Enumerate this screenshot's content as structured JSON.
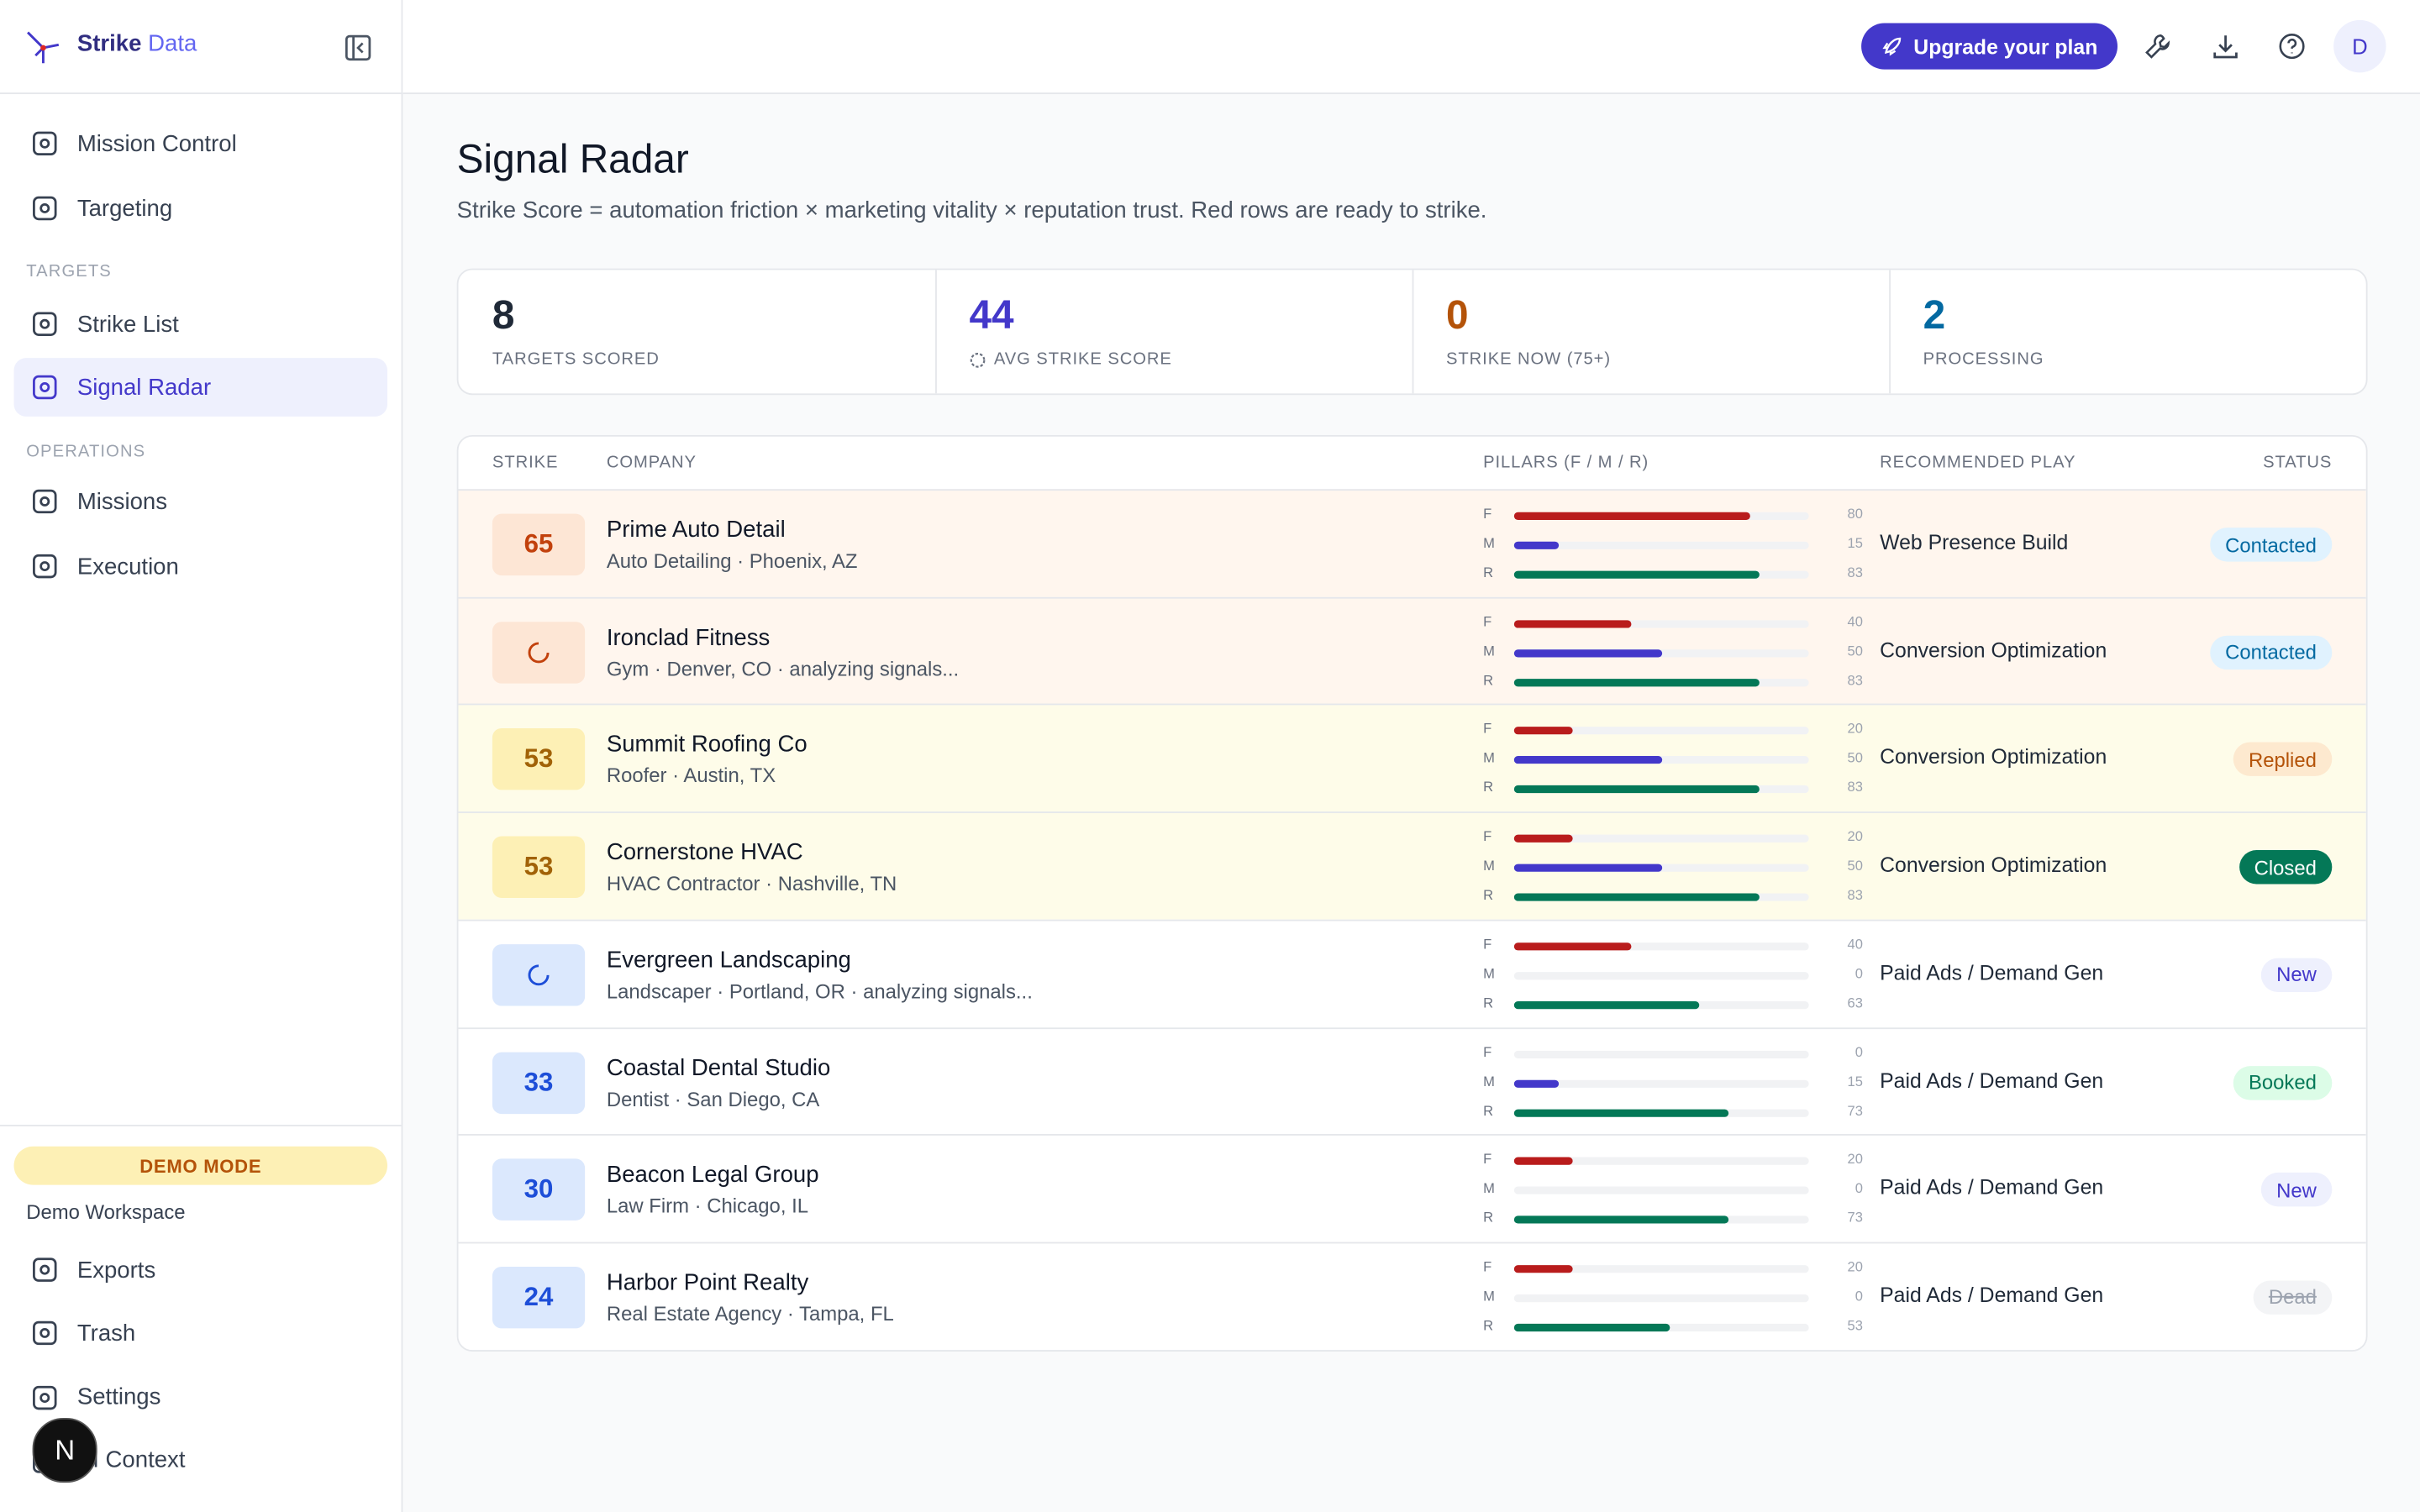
{
  "brand": {
    "name": "Strike",
    "suffix": "Data"
  },
  "nav": {
    "top": [
      "Mission Control",
      "Targeting"
    ],
    "sections": [
      {
        "title": "TARGETS",
        "items": [
          "Strike List",
          "Signal Radar"
        ]
      },
      {
        "title": "OPERATIONS",
        "items": [
          "Missions",
          "Execution"
        ]
      }
    ],
    "active": "Signal Radar",
    "demo_badge": "DEMO MODE",
    "workspace": "Demo Workspace",
    "bottom": [
      "Exports",
      "Trash",
      "Settings",
      "AI Context"
    ]
  },
  "header": {
    "upgrade": "Upgrade your plan",
    "avatar": "D"
  },
  "dev_badge": "N",
  "page": {
    "title": "Signal Radar",
    "subtitle": "Strike Score = automation friction × marketing vitality × reputation trust. Red rows are ready to strike."
  },
  "stats": [
    {
      "value": "8",
      "label": "TARGETS SCORED",
      "color": "#1f2937"
    },
    {
      "value": "44",
      "label": "AVG STRIKE SCORE",
      "color": "#4338ca"
    },
    {
      "value": "0",
      "label": "STRIKE NOW (75+)",
      "color": "#b45309"
    },
    {
      "value": "2",
      "label": "PROCESSING",
      "color": "#0369a1"
    }
  ],
  "table": {
    "columns": [
      "STRIKE",
      "COMPANY",
      "PILLARS (F / M / R)",
      "RECOMMENDED PLAY",
      "STATUS"
    ],
    "pillar_labels": [
      "F",
      "M",
      "R"
    ],
    "pillar_colors": [
      "#b91c1c",
      "#4338ca",
      "#047857"
    ],
    "pillar_max": 100,
    "tones": {
      "hot": {
        "row": "#fff6ee",
        "badge": "#fde6d5",
        "text": "#c2410c"
      },
      "warm": {
        "row": "#fefce9",
        "badge": "#fdf0b5",
        "text": "#a16207"
      },
      "cool": {
        "row": "#ffffff",
        "badge": "#dbe8fd",
        "text": "#1d4ed8"
      }
    },
    "rows": [
      {
        "strike": 65,
        "tone": "hot",
        "company": "Prime Auto Detail",
        "meta": "Auto Detailing · Phoenix, AZ",
        "pillars": [
          80,
          15,
          83
        ],
        "play": "Web Presence Build",
        "status": {
          "label": "Contacted",
          "bg": "#e0f2fe",
          "fg": "#0369a1"
        }
      },
      {
        "strike": null,
        "tone": "hot",
        "company": "Ironclad Fitness",
        "meta": "Gym · Denver, CO · analyzing signals...",
        "pillars": [
          40,
          50,
          83
        ],
        "play": "Conversion Optimization",
        "status": {
          "label": "Contacted",
          "bg": "#e0f2fe",
          "fg": "#0369a1"
        }
      },
      {
        "strike": 53,
        "tone": "warm",
        "company": "Summit Roofing Co",
        "meta": "Roofer · Austin, TX",
        "pillars": [
          20,
          50,
          83
        ],
        "play": "Conversion Optimization",
        "status": {
          "label": "Replied",
          "bg": "#fde9cf",
          "fg": "#b45309"
        }
      },
      {
        "strike": 53,
        "tone": "warm",
        "company": "Cornerstone HVAC",
        "meta": "HVAC Contractor · Nashville, TN",
        "pillars": [
          20,
          50,
          83
        ],
        "play": "Conversion Optimization",
        "status": {
          "label": "Closed",
          "bg": "#047857",
          "fg": "#ffffff"
        }
      },
      {
        "strike": null,
        "tone": "cool",
        "company": "Evergreen Landscaping",
        "meta": "Landscaper · Portland, OR · analyzing signals...",
        "pillars": [
          40,
          0,
          63
        ],
        "play": "Paid Ads / Demand Gen",
        "status": {
          "label": "New",
          "bg": "#eef0fd",
          "fg": "#4338ca"
        }
      },
      {
        "strike": 33,
        "tone": "cool",
        "company": "Coastal Dental Studio",
        "meta": "Dentist · San Diego, CA",
        "pillars": [
          0,
          15,
          73
        ],
        "play": "Paid Ads / Demand Gen",
        "status": {
          "label": "Booked",
          "bg": "#dcfce7",
          "fg": "#047857"
        }
      },
      {
        "strike": 30,
        "tone": "cool",
        "company": "Beacon Legal Group",
        "meta": "Law Firm · Chicago, IL",
        "pillars": [
          20,
          0,
          73
        ],
        "play": "Paid Ads / Demand Gen",
        "status": {
          "label": "New",
          "bg": "#eef0fd",
          "fg": "#4338ca"
        }
      },
      {
        "strike": 24,
        "tone": "cool",
        "company": "Harbor Point Realty",
        "meta": "Real Estate Agency · Tampa, FL",
        "pillars": [
          20,
          0,
          53
        ],
        "play": "Paid Ads / Demand Gen",
        "status": {
          "label": "Dead",
          "bg": "#f3f4f6",
          "fg": "#9ca3af",
          "strike_through": true
        }
      }
    ]
  }
}
